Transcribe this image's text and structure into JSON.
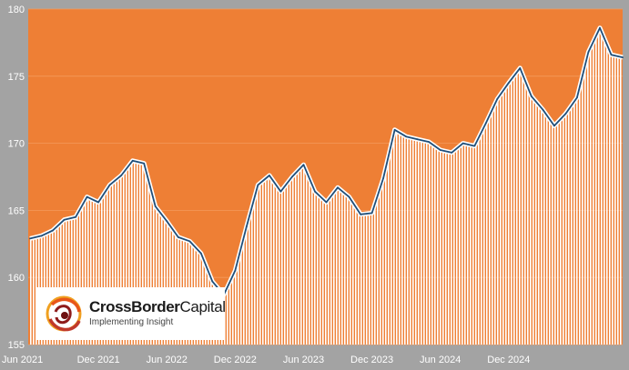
{
  "chart_data": {
    "type": "area",
    "title": "",
    "xlabel": "",
    "ylabel": "",
    "ylim": [
      155,
      180
    ],
    "y_ticks": [
      "155",
      "160",
      "165",
      "170",
      "175",
      "180"
    ],
    "x_ticks": [
      "Jun 2021",
      "Dec 2021",
      "Jun 2022",
      "Dec 2022",
      "Jun 2023",
      "Dec 2023",
      "Jun 2024",
      "Dec 2024"
    ],
    "x_start": "2021-06",
    "grid": true,
    "legend": "none",
    "colors": {
      "plot_background": "#ee7f35",
      "fill_stripes": "#ffffff",
      "line": "#1f4e79",
      "frame": "#a3a3a3"
    },
    "series": [
      {
        "values": [
          162.9,
          163.1,
          163.5,
          164.3,
          164.5,
          166.0,
          165.6,
          166.9,
          167.6,
          168.7,
          168.5,
          165.3,
          164.2,
          163.0,
          162.7,
          161.8,
          159.7,
          158.7,
          160.5,
          163.8,
          166.9,
          167.6,
          166.4,
          167.5,
          168.4,
          166.4,
          165.6,
          166.7,
          166.0,
          164.7,
          164.8,
          167.4,
          171.0,
          170.5,
          170.3,
          170.1,
          169.5,
          169.3,
          170.0,
          169.8,
          171.5,
          173.3,
          174.5,
          175.6,
          173.5,
          172.5,
          171.3,
          172.2,
          173.4,
          176.8,
          178.6,
          176.6,
          176.4
        ]
      }
    ]
  },
  "logo": {
    "name_bold": "CrossBorder",
    "name_light": "Capital",
    "tagline": "Implementing Insight"
  }
}
